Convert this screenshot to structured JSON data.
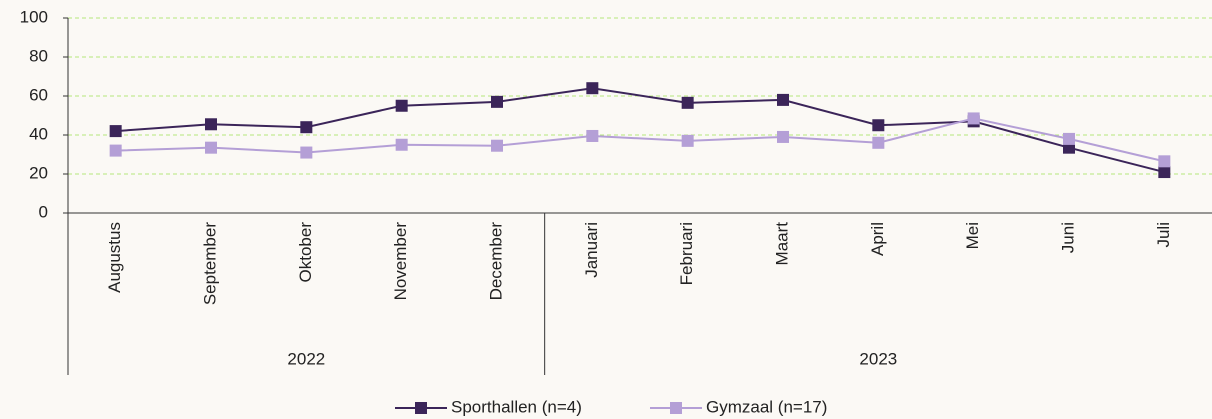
{
  "chart_data": {
    "type": "line",
    "category_groups": [
      {
        "label": "2022",
        "categories": [
          "Augustus",
          "September",
          "Oktober",
          "November",
          "December"
        ]
      },
      {
        "label": "2023",
        "categories": [
          "Januari",
          "Februari",
          "Maart",
          "April",
          "Mei",
          "Juni",
          "Juli"
        ]
      }
    ],
    "series": [
      {
        "name": "Sporthallen (n=4)",
        "color": "#3b2559",
        "values": [
          42,
          45.5,
          44,
          55,
          57,
          64,
          56.5,
          58,
          45,
          47,
          33.5,
          21
        ]
      },
      {
        "name": "Gymzaal (n=17)",
        "color": "#b49fd6",
        "values": [
          32,
          33.5,
          31,
          35,
          34.5,
          39.5,
          37,
          39,
          36,
          48.5,
          38,
          26.5
        ]
      }
    ],
    "ylim": [
      0,
      100
    ],
    "yticks": [
      0,
      20,
      40,
      60,
      80,
      100
    ],
    "grid": true,
    "legend": "bottom"
  }
}
